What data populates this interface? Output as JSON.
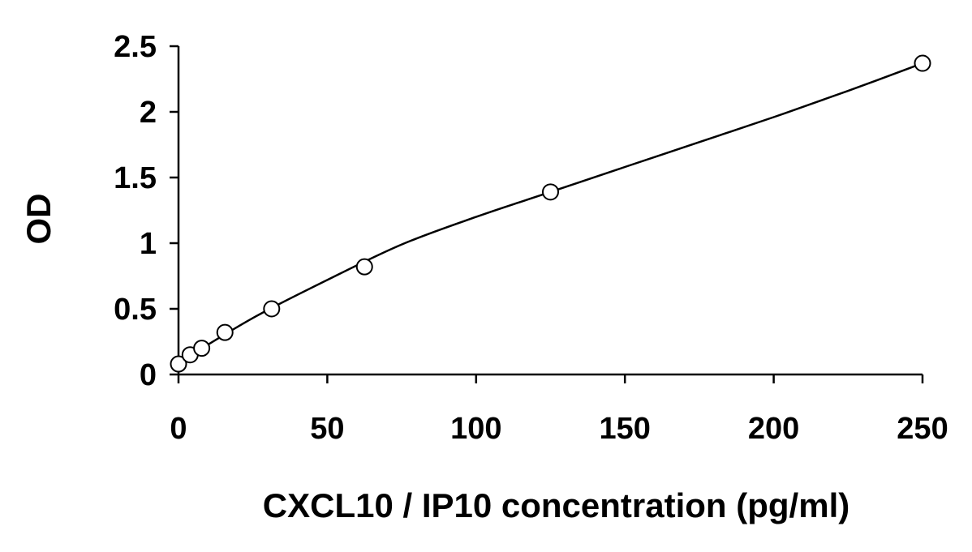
{
  "chart_data": {
    "type": "scatter",
    "title": "",
    "xlabel": "CXCL10 / IP10 concentration (pg/ml)",
    "ylabel": "OD",
    "xlim": [
      0,
      250
    ],
    "ylim": [
      0,
      2.5
    ],
    "x_ticks": [
      0,
      50,
      100,
      150,
      200,
      250
    ],
    "y_ticks": [
      0,
      0.5,
      1,
      1.5,
      2,
      2.5
    ],
    "x_tick_labels": [
      "0",
      "50",
      "100",
      "150",
      "200",
      "250"
    ],
    "y_tick_labels": [
      "0",
      "0.5",
      "1",
      "1.5",
      "2",
      "2.5"
    ],
    "grid": false,
    "legend": "none",
    "series": [
      {
        "x": [
          0,
          3.9,
          7.8,
          15.6,
          31.3,
          62.5,
          125,
          250
        ],
        "y": [
          0.08,
          0.15,
          0.2,
          0.32,
          0.5,
          0.82,
          1.39,
          2.37
        ]
      }
    ],
    "fit_line": {
      "x": [
        0,
        25,
        50,
        75,
        100,
        125,
        150,
        175,
        200,
        225,
        250
      ],
      "y": [
        0.09,
        0.43,
        0.72,
        0.99,
        1.2,
        1.39,
        1.58,
        1.77,
        1.96,
        2.16,
        2.37
      ]
    }
  }
}
